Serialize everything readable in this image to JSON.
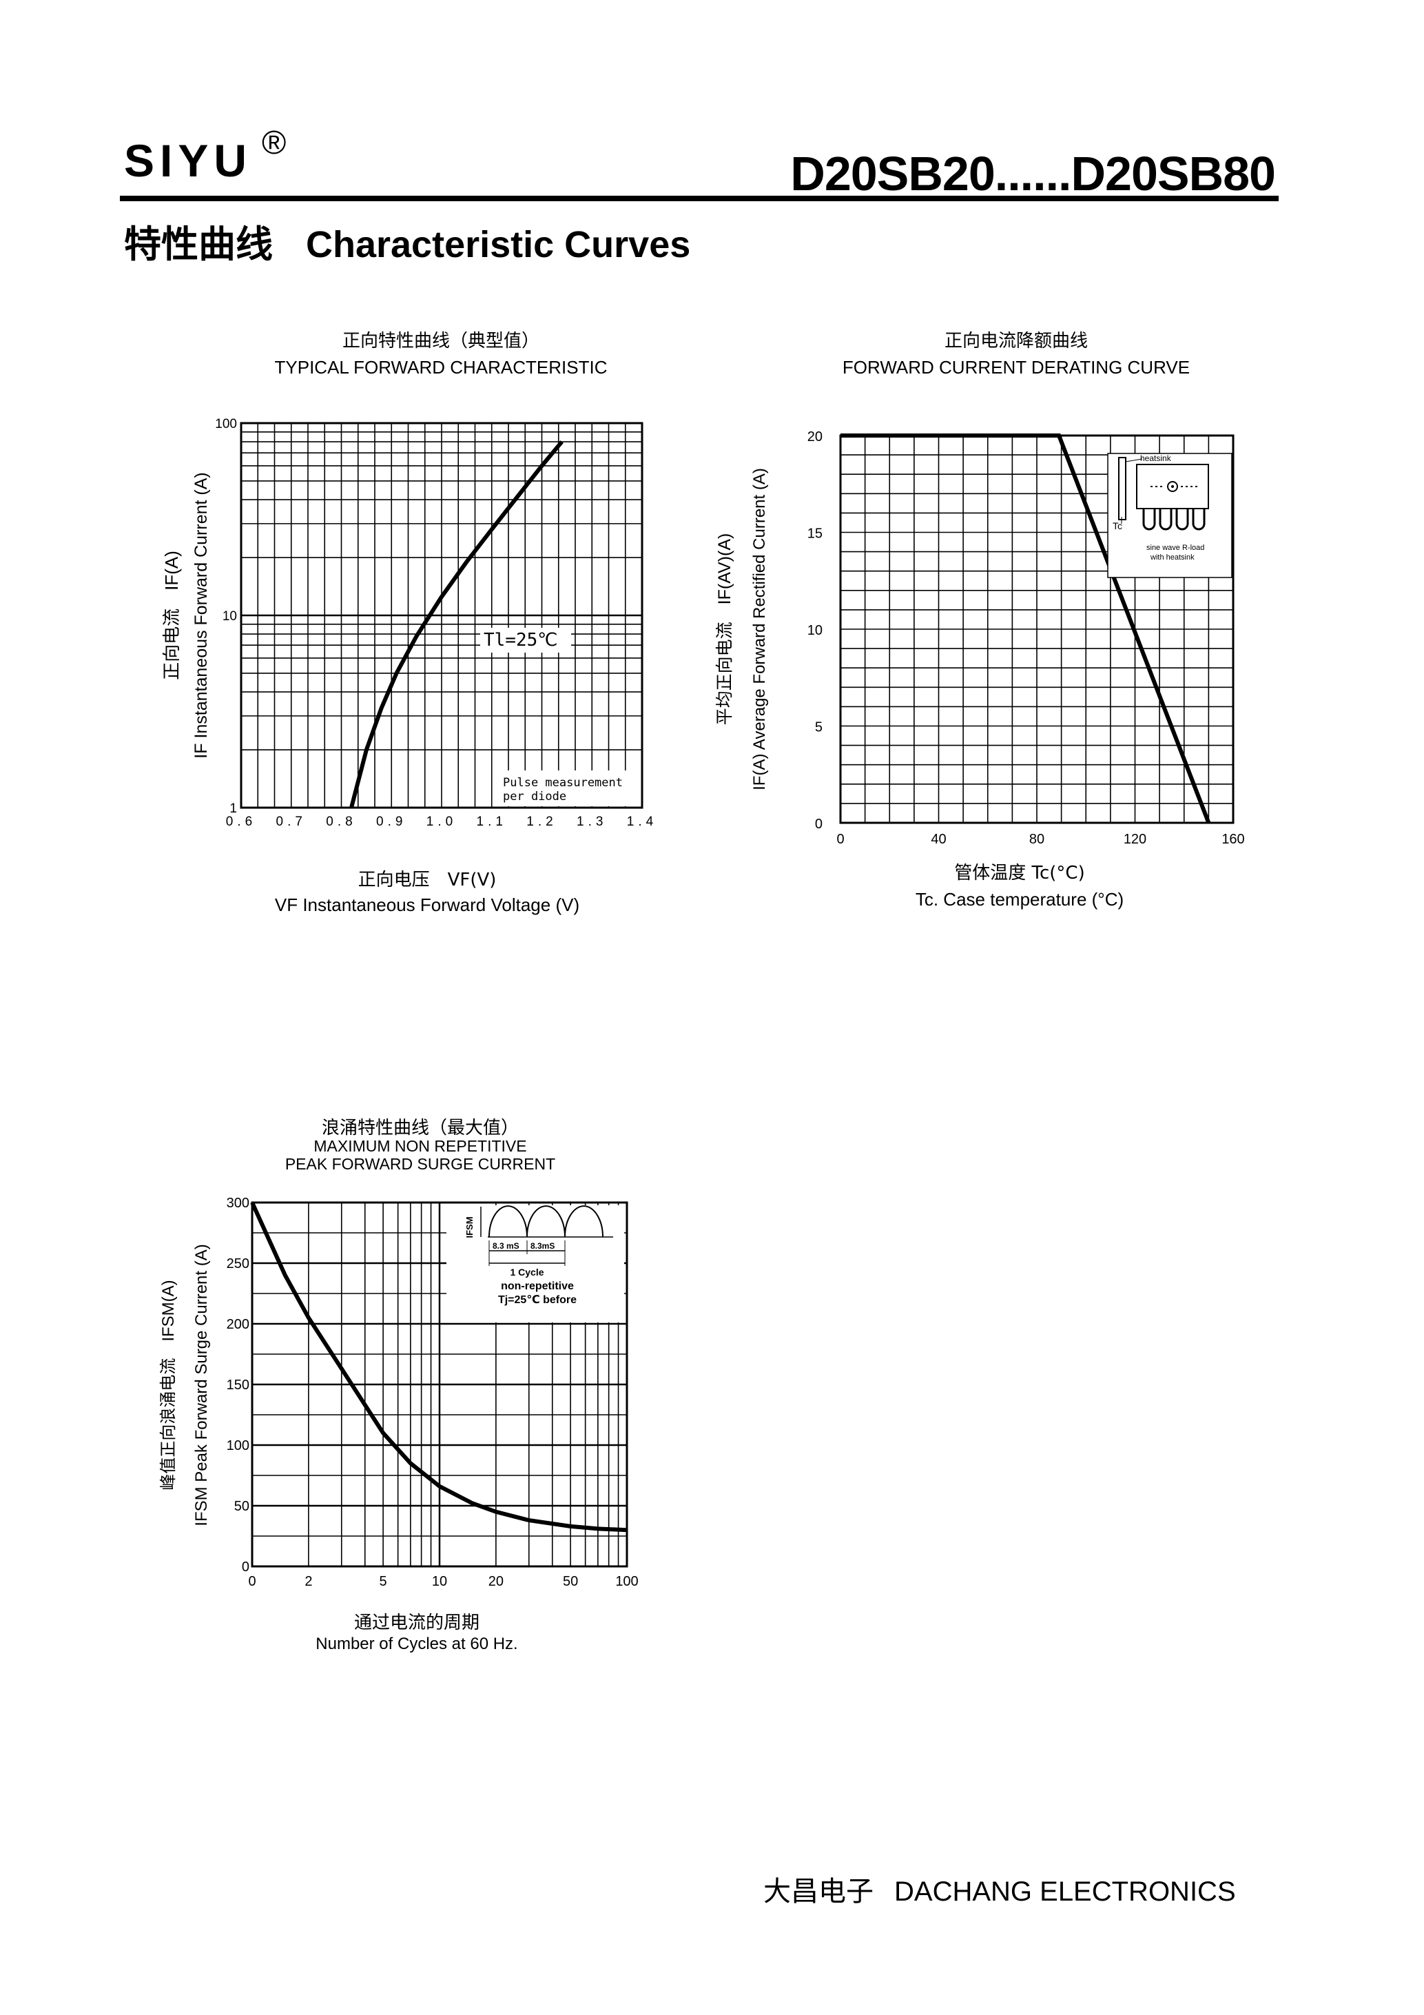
{
  "header": {
    "brand": "SIYU",
    "brand_mark": "®",
    "model_range": "D20SB20......D20SB80"
  },
  "section": {
    "title_zh": "特性曲线",
    "title_en": "Characteristic Curves"
  },
  "footer": {
    "company_zh": "大昌电子",
    "company_en": "DACHANG ELECTRONICS"
  },
  "chart_data": [
    {
      "id": "forward",
      "type": "line",
      "title_zh": "正向特性曲线（典型值）",
      "title_en": "TYPICAL FORWARD CHARACTERISTIC",
      "xlabel_zh": "正向电压　VF(V)",
      "xlabel_en": "VF  Instantaneous Forward Voltage (V)",
      "ylabel_zh": "正向电流　IF(A)",
      "ylabel_en": "IF Instantaneous Forward Current (A)",
      "x_scale": "linear",
      "y_scale": "log",
      "xlim": [
        0.6,
        1.4
      ],
      "ylim": [
        1,
        100
      ],
      "x_ticks": [
        "0.6",
        "0.7",
        "0.8",
        "0.9",
        "1.0",
        "1.1",
        "1.2",
        "1.3",
        "1.4"
      ],
      "y_ticks": [
        "1",
        "10",
        "100"
      ],
      "grid": true,
      "annotations": [
        "Tl=25℃",
        "Pulse measurement",
        "per diode"
      ],
      "series": [
        {
          "x": [
            0.82,
            0.85,
            0.88,
            0.91,
            0.95,
            1.0,
            1.05,
            1.1,
            1.15,
            1.2,
            1.24
          ],
          "y": [
            1.0,
            2.0,
            3.3,
            5.0,
            7.8,
            12.5,
            19.0,
            28.0,
            41.0,
            60.0,
            80.0
          ]
        }
      ]
    },
    {
      "id": "derating",
      "type": "line",
      "title_zh": "正向电流降额曲线",
      "title_en": "FORWARD CURRENT DERATING CURVE",
      "xlabel_zh": "管体温度 Tc(°C)",
      "xlabel_en": "Tc. Case temperature (°C)",
      "ylabel_zh": "平均正向电流　IF(AV)(A)",
      "ylabel_en": "IF(A) Average Forward Rectified Current (A)",
      "xlim": [
        0,
        160
      ],
      "ylim": [
        0,
        20
      ],
      "x_ticks": [
        "0",
        "40",
        "80",
        "120",
        "160"
      ],
      "y_ticks": [
        "0",
        "5",
        "10",
        "15",
        "20"
      ],
      "grid": true,
      "annotations": [
        "heatsink",
        "Tc",
        "sine wave R-load",
        "with heatsink"
      ],
      "series": [
        {
          "x": [
            0,
            89,
            150
          ],
          "y": [
            20,
            20,
            0
          ]
        }
      ]
    },
    {
      "id": "surge",
      "type": "line",
      "title_zh": "浪涌特性曲线（最大值）",
      "title_en_1": "MAXIMUM NON REPETITIVE",
      "title_en_2": "PEAK FORWARD SURGE CURRENT",
      "xlabel_zh": "通过电流的周期",
      "xlabel_en": "Number  of  Cycles at 60 Hz.",
      "ylabel_zh": "峰值正向浪涌电流　IFSM(A)",
      "ylabel_en": "IFSM Peak Forward Surge Current (A)",
      "x_scale": "log",
      "ylim": [
        0,
        300
      ],
      "x_ticks": [
        "0",
        "2",
        "5",
        "10",
        "20",
        "50",
        "100"
      ],
      "y_ticks": [
        "0",
        "50",
        "100",
        "150",
        "200",
        "250",
        "300"
      ],
      "grid": true,
      "annotations": [
        "IFSM",
        "8.3 mS",
        "8.3mS",
        "1 Cycle",
        "non-repetitive",
        "Tj=25℃  before"
      ],
      "series": [
        {
          "x": [
            1,
            1.5,
            2,
            3,
            5,
            7,
            10,
            15,
            20,
            30,
            50,
            70,
            100
          ],
          "y": [
            300,
            240,
            205,
            163,
            110,
            85,
            66,
            52,
            45,
            38,
            33,
            31,
            30
          ]
        }
      ]
    }
  ]
}
